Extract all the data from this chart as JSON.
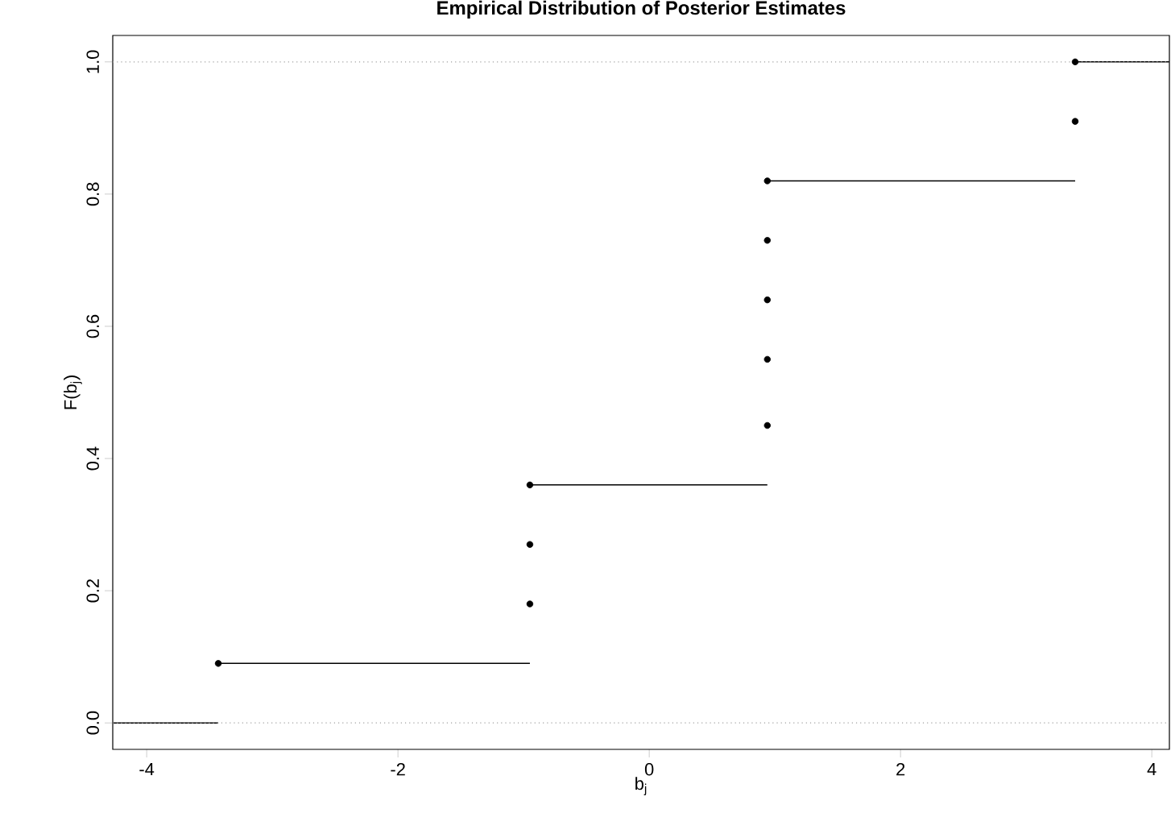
{
  "chart_data": {
    "type": "step",
    "title": "Empirical Distribution of Posterior Estimates",
    "xlabel": "b$_{j}$",
    "ylabel": "F(b$_{j}$)",
    "xlim": [
      -4.27,
      4.14
    ],
    "ylim": [
      -0.04,
      1.04
    ],
    "xticks": [
      -4,
      -2,
      0,
      2,
      4
    ],
    "yticks": [
      {
        "value": 0,
        "label": "0.0"
      },
      0.2,
      0.4,
      0.6,
      0.8,
      {
        "value": 1,
        "label": "1.0"
      }
    ],
    "series": [
      {
        "color": "#000000",
        "x": [
          -4.27,
          -3.43,
          -0.95,
          0.94,
          3.39,
          4.14
        ],
        "values": [
          0,
          0.09,
          0.36,
          0.82,
          1.0,
          1.0
        ]
      },
      {
        "type": "scatter",
        "marker": "circle",
        "color": "#000000",
        "x": [
          -3.43,
          -0.95,
          -0.95,
          -0.95,
          0.94,
          0.94,
          0.94,
          0.94,
          0.94,
          3.39,
          3.39
        ],
        "values": [
          0.09,
          0.18,
          0.27,
          0.36,
          0.45,
          0.55,
          0.64,
          0.73,
          0.82,
          0.91,
          1.0
        ]
      }
    ],
    "ref_lines": [
      {
        "axis": "y",
        "value": 0,
        "color": "#a0a0a0",
        "line_style": "dotted"
      },
      {
        "axis": "y",
        "value": 1,
        "color": "#a0a0a0",
        "line_style": "dotted"
      }
    ]
  }
}
